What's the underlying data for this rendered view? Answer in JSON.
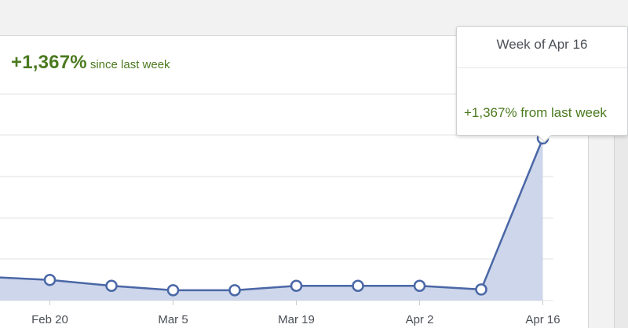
{
  "summary": {
    "change_value": "+1,367%",
    "change_suffix": "since last week"
  },
  "tooltip": {
    "title": "Week of Apr 16",
    "change_text": "+1,367% from last week"
  },
  "colors": {
    "line": "#4a67a6",
    "area": "#cdd6ea",
    "positive_text": "#4b7a1f",
    "grid": "#e3e3e3",
    "axis_text": "#4b4f56"
  },
  "chart_data": {
    "type": "area",
    "title": "",
    "xlabel": "",
    "ylabel": "",
    "x_tick_labels": [
      "Feb 20",
      "Mar 5",
      "Mar 19",
      "Apr 2",
      "Apr 16"
    ],
    "points": [
      {
        "x": "Feb 13",
        "y": 1.6
      },
      {
        "x": "Feb 20",
        "y": 1.4
      },
      {
        "x": "Feb 27",
        "y": 1.0
      },
      {
        "x": "Mar 5",
        "y": 0.7
      },
      {
        "x": "Mar 12",
        "y": 0.7
      },
      {
        "x": "Mar 19",
        "y": 1.0
      },
      {
        "x": "Mar 26",
        "y": 1.0
      },
      {
        "x": "Apr 2",
        "y": 1.0
      },
      {
        "x": "Apr 9",
        "y": 0.75
      },
      {
        "x": "Apr 16",
        "y": 11.0
      }
    ],
    "ylim": [
      0,
      14
    ],
    "grid": true,
    "legend": "none"
  }
}
